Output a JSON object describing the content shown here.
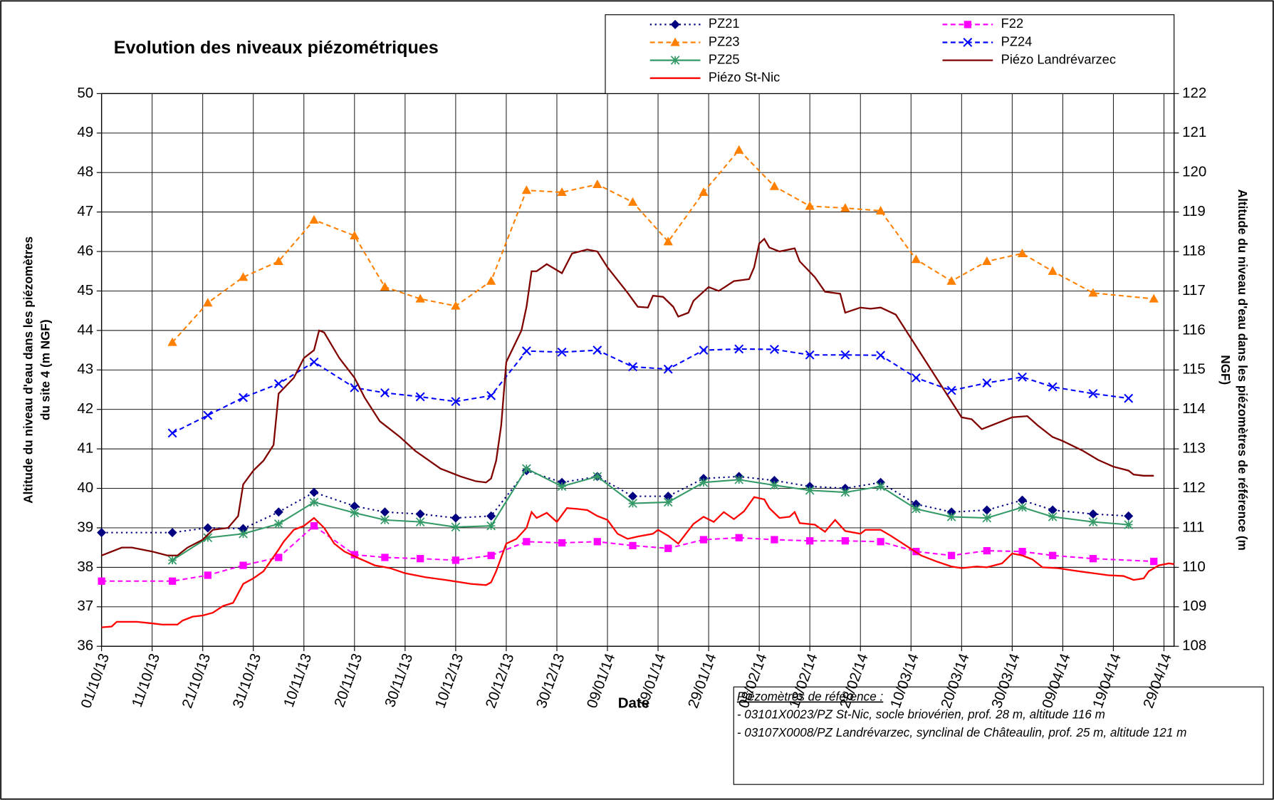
{
  "chart_data": {
    "type": "line",
    "title": "Evolution des niveaux piézométriques",
    "x_label": "Date",
    "y_label": [
      "Altitude du niveau d'eau dans les piézomètres",
      "du site 4 (m NGF)"
    ],
    "y2_label": [
      "Altitude du niveau d'eau dans les piézomètres de référence (m",
      "NGF)"
    ],
    "xlim": [
      "01/10/13",
      "01/05/14"
    ],
    "xticks": [
      "01/10/13",
      "11/10/13",
      "21/10/13",
      "31/10/13",
      "10/11/13",
      "20/11/13",
      "30/11/13",
      "10/12/13",
      "20/12/13",
      "30/12/13",
      "09/01/14",
      "19/01/14",
      "29/01/14",
      "08/02/14",
      "18/02/14",
      "28/02/14",
      "10/03/14",
      "20/03/14",
      "30/03/14",
      "09/04/14",
      "19/04/14",
      "29/04/14"
    ],
    "ylim": [
      36,
      50
    ],
    "yticks": [
      36,
      37,
      38,
      39,
      40,
      41,
      42,
      43,
      44,
      45,
      46,
      47,
      48,
      49,
      50
    ],
    "y2lim": [
      108,
      122
    ],
    "y2ticks": [
      108,
      109,
      110,
      111,
      112,
      113,
      114,
      115,
      116,
      117,
      118,
      119,
      120,
      121,
      122
    ],
    "grid": true,
    "legend": "top-right",
    "series": [
      {
        "name": "PZ21",
        "color": "#000080",
        "marker": "diamond",
        "line_style": "dotted",
        "x": [
          "01/10/13",
          "15/10/13",
          "22/10/13",
          "29/10/13",
          "05/11/13",
          "12/11/13",
          "20/11/13",
          "26/11/13",
          "03/12/13",
          "10/12/13",
          "17/12/13",
          "24/12/13",
          "31/12/13",
          "07/01/14",
          "14/01/14",
          "21/01/14",
          "28/01/14",
          "04/02/14",
          "11/02/14",
          "18/02/14",
          "25/02/14",
          "04/03/14",
          "11/03/14",
          "18/03/14",
          "25/03/14",
          "01/04/14",
          "07/04/14",
          "15/04/14",
          "22/04/14"
        ],
        "values": [
          38.88,
          38.88,
          39.0,
          38.98,
          39.4,
          39.9,
          39.55,
          39.4,
          39.35,
          39.25,
          39.3,
          40.45,
          40.15,
          40.3,
          39.8,
          39.8,
          40.25,
          40.3,
          40.2,
          40.05,
          40.0,
          40.15,
          39.6,
          39.4,
          39.45,
          39.7,
          39.45,
          39.35,
          39.3
        ]
      },
      {
        "name": "F22",
        "color": "#ff00ff",
        "marker": "square",
        "line_style": "dashed",
        "x": [
          "01/10/13",
          "15/10/13",
          "22/10/13",
          "29/10/13",
          "05/11/13",
          "12/11/13",
          "20/11/13",
          "26/11/13",
          "03/12/13",
          "10/12/13",
          "17/12/13",
          "24/12/13",
          "31/12/13",
          "07/01/14",
          "14/01/14",
          "21/01/14",
          "28/01/14",
          "04/02/14",
          "11/02/14",
          "18/02/14",
          "25/02/14",
          "04/03/14",
          "11/03/14",
          "18/03/14",
          "25/03/14",
          "01/04/14",
          "07/04/14",
          "15/04/14",
          "27/04/14"
        ],
        "values": [
          37.65,
          37.65,
          37.8,
          38.05,
          38.25,
          39.05,
          38.32,
          38.25,
          38.22,
          38.18,
          38.3,
          38.65,
          38.62,
          38.65,
          38.55,
          38.48,
          38.7,
          38.75,
          38.7,
          38.67,
          38.67,
          38.65,
          38.4,
          38.3,
          38.42,
          38.4,
          38.3,
          38.22,
          38.15
        ]
      },
      {
        "name": "PZ23",
        "color": "#ff7f00",
        "marker": "triangle",
        "line_style": "dashed",
        "x": [
          "15/10/13",
          "22/10/13",
          "29/10/13",
          "05/11/13",
          "12/11/13",
          "20/11/13",
          "26/11/13",
          "03/12/13",
          "10/12/13",
          "17/12/13",
          "24/12/13",
          "31/12/13",
          "07/01/14",
          "14/01/14",
          "21/01/14",
          "28/01/14",
          "04/02/14",
          "11/02/14",
          "18/02/14",
          "25/02/14",
          "04/03/14",
          "11/03/14",
          "18/03/14",
          "25/03/14",
          "01/04/14",
          "07/04/14",
          "15/04/14",
          "27/04/14"
        ],
        "values": [
          43.7,
          44.7,
          45.35,
          45.75,
          46.8,
          46.4,
          45.1,
          44.8,
          44.62,
          45.25,
          47.55,
          47.5,
          47.7,
          47.25,
          46.25,
          47.5,
          48.57,
          47.65,
          47.15,
          47.1,
          47.03,
          45.8,
          45.25,
          45.75,
          45.95,
          45.5,
          44.95,
          44.8
        ]
      },
      {
        "name": "PZ24",
        "color": "#0000ff",
        "marker": "x",
        "line_style": "dashed",
        "x": [
          "15/10/13",
          "22/10/13",
          "29/10/13",
          "05/11/13",
          "12/11/13",
          "20/11/13",
          "26/11/13",
          "03/12/13",
          "10/12/13",
          "17/12/13",
          "24/12/13",
          "31/12/13",
          "07/01/14",
          "14/01/14",
          "21/01/14",
          "28/01/14",
          "04/02/14",
          "11/02/14",
          "18/02/14",
          "25/02/14",
          "04/03/14",
          "11/03/14",
          "18/03/14",
          "25/03/14",
          "01/04/14",
          "07/04/14",
          "15/04/14",
          "22/04/14"
        ],
        "values": [
          41.4,
          41.85,
          42.3,
          42.65,
          43.2,
          42.55,
          42.42,
          42.32,
          42.2,
          42.35,
          43.48,
          43.45,
          43.5,
          43.08,
          43.02,
          43.5,
          43.53,
          43.52,
          43.38,
          43.38,
          43.37,
          42.8,
          42.48,
          42.67,
          42.82,
          42.57,
          42.4,
          42.28
        ]
      },
      {
        "name": "PZ25",
        "color": "#339966",
        "marker": "star",
        "line_style": "solid",
        "x": [
          "15/10/13",
          "22/10/13",
          "29/10/13",
          "05/11/13",
          "12/11/13",
          "20/11/13",
          "26/11/13",
          "03/12/13",
          "10/12/13",
          "17/12/13",
          "24/12/13",
          "31/12/13",
          "07/01/14",
          "14/01/14",
          "21/01/14",
          "28/01/14",
          "04/02/14",
          "11/02/14",
          "18/02/14",
          "25/02/14",
          "04/03/14",
          "11/03/14",
          "18/03/14",
          "25/03/14",
          "01/04/14",
          "07/04/14",
          "15/04/14",
          "22/04/14"
        ],
        "values": [
          38.18,
          38.75,
          38.85,
          39.1,
          39.65,
          39.38,
          39.2,
          39.15,
          39.02,
          39.05,
          40.5,
          40.05,
          40.3,
          39.62,
          39.65,
          40.15,
          40.22,
          40.08,
          39.95,
          39.9,
          40.05,
          39.48,
          39.28,
          39.25,
          39.52,
          39.28,
          39.15,
          39.08
        ]
      },
      {
        "name": "Piézo Landrévarzec",
        "color": "#800000",
        "marker": "none",
        "line_style": "solid",
        "axis": "y2",
        "x": [
          "01/10/13",
          "05/10/13",
          "07/10/13",
          "11/10/13",
          "14/10/13",
          "16/10/13",
          "18/10/13",
          "21/10/13",
          "23/10/13",
          "26/10/13",
          "28/10/13",
          "29/10/13",
          "31/10/13",
          "02/11/13",
          "04/11/13",
          "05/11/13",
          "08/11/13",
          "10/11/13",
          "12/11/13",
          "13/11/13",
          "14/11/13",
          "17/11/13",
          "20/11/13",
          "22/11/13",
          "25/11/13",
          "29/11/13",
          "02/12/13",
          "07/12/13",
          "11/12/13",
          "14/12/13",
          "16/12/13",
          "17/12/13",
          "18/12/13",
          "19/12/13",
          "20/12/13",
          "23/12/13",
          "24/12/13",
          "25/12/13",
          "26/12/13",
          "28/12/13",
          "31/12/13",
          "02/01/14",
          "05/01/14",
          "07/01/14",
          "09/01/14",
          "13/01/14",
          "15/01/14",
          "17/01/14",
          "18/01/14",
          "20/01/14",
          "22/01/14",
          "23/01/14",
          "25/01/14",
          "26/01/14",
          "29/01/14",
          "31/01/14",
          "03/02/14",
          "06/02/14",
          "07/02/14",
          "08/02/14",
          "09/02/14",
          "10/02/14",
          "12/02/14",
          "15/02/14",
          "16/02/14",
          "19/02/14",
          "21/02/14",
          "24/02/14",
          "25/02/14",
          "28/02/14",
          "02/03/14",
          "04/03/14",
          "07/03/14",
          "09/03/14",
          "12/03/14",
          "15/03/14",
          "18/03/14",
          "20/03/14",
          "22/03/14",
          "24/03/14",
          "27/03/14",
          "30/03/14",
          "02/04/14",
          "04/04/14",
          "07/04/14",
          "09/04/14",
          "13/04/14",
          "16/04/14",
          "19/04/14",
          "22/04/14",
          "23/04/14",
          "25/04/14",
          "27/04/14"
        ],
        "values": [
          110.3,
          110.5,
          110.5,
          110.4,
          110.3,
          110.3,
          110.5,
          110.7,
          110.95,
          111.0,
          111.3,
          112.1,
          112.45,
          112.7,
          113.1,
          114.4,
          114.8,
          115.3,
          115.5,
          116.0,
          115.95,
          115.3,
          114.8,
          114.3,
          113.7,
          113.3,
          112.95,
          112.5,
          112.3,
          112.18,
          112.15,
          112.25,
          112.7,
          113.6,
          115.2,
          116.0,
          116.6,
          117.5,
          117.5,
          117.68,
          117.45,
          117.95,
          118.05,
          118.0,
          117.6,
          116.95,
          116.6,
          116.58,
          116.88,
          116.85,
          116.6,
          116.35,
          116.45,
          116.75,
          117.1,
          117.0,
          117.25,
          117.3,
          117.6,
          118.2,
          118.32,
          118.1,
          118.0,
          118.08,
          117.75,
          117.35,
          116.98,
          116.93,
          116.45,
          116.58,
          116.55,
          116.58,
          116.4,
          116.0,
          115.4,
          114.8,
          114.2,
          113.8,
          113.75,
          113.5,
          113.65,
          113.8,
          113.83,
          113.6,
          113.3,
          113.2,
          112.95,
          112.72,
          112.55,
          112.45,
          112.35,
          112.32,
          112.32
        ]
      },
      {
        "name": "Piézo St-Nic",
        "color": "#ff0000",
        "marker": "none",
        "line_style": "solid",
        "axis": "y2",
        "x": [
          "01/10/13",
          "03/10/13",
          "04/10/13",
          "08/10/13",
          "11/10/13",
          "13/10/13",
          "16/10/13",
          "17/10/13",
          "19/10/13",
          "21/10/13",
          "23/10/13",
          "25/10/13",
          "27/10/13",
          "29/10/13",
          "31/10/13",
          "02/11/13",
          "05/11/13",
          "06/11/13",
          "08/11/13",
          "10/11/13",
          "12/11/13",
          "14/11/13",
          "16/11/13",
          "18/11/13",
          "21/11/13",
          "24/11/13",
          "27/11/13",
          "30/11/13",
          "04/12/13",
          "08/12/13",
          "11/12/13",
          "13/12/13",
          "16/12/13",
          "17/12/13",
          "18/12/13",
          "20/12/13",
          "22/12/13",
          "24/12/13",
          "25/12/13",
          "26/12/13",
          "28/12/13",
          "30/12/13",
          "01/01/14",
          "03/01/14",
          "05/01/14",
          "07/01/14",
          "09/01/14",
          "11/01/14",
          "13/01/14",
          "15/01/14",
          "18/01/14",
          "19/01/14",
          "21/01/14",
          "23/01/14",
          "26/01/14",
          "28/01/14",
          "30/01/14",
          "01/02/14",
          "03/02/14",
          "05/02/14",
          "07/02/14",
          "09/02/14",
          "10/02/14",
          "12/02/14",
          "14/02/14",
          "15/02/14",
          "16/02/14",
          "19/02/14",
          "21/02/14",
          "23/02/14",
          "25/02/14",
          "28/02/14",
          "01/03/14",
          "04/03/14",
          "06/03/14",
          "09/03/14",
          "12/03/14",
          "15/03/14",
          "18/03/14",
          "20/03/14",
          "23/03/14",
          "25/03/14",
          "28/03/14",
          "30/03/14",
          "01/04/14",
          "03/04/14",
          "05/04/14",
          "08/04/14",
          "11/04/14",
          "15/04/14",
          "18/04/14",
          "21/04/14",
          "23/04/14",
          "25/04/14",
          "26/04/14",
          "28/04/14",
          "30/04/14",
          "01/05/14"
        ],
        "values": [
          108.48,
          108.5,
          108.62,
          108.62,
          108.58,
          108.55,
          108.55,
          108.65,
          108.75,
          108.78,
          108.85,
          109.02,
          109.1,
          109.58,
          109.72,
          109.9,
          110.45,
          110.65,
          110.95,
          111.05,
          111.25,
          111.0,
          110.6,
          110.4,
          110.22,
          110.05,
          109.98,
          109.85,
          109.75,
          109.68,
          109.62,
          109.58,
          109.55,
          109.62,
          109.9,
          110.6,
          110.72,
          111.0,
          111.4,
          111.25,
          111.38,
          111.15,
          111.5,
          111.48,
          111.45,
          111.3,
          111.2,
          110.85,
          110.72,
          110.78,
          110.85,
          110.95,
          110.8,
          110.6,
          111.1,
          111.28,
          111.15,
          111.4,
          111.22,
          111.42,
          111.78,
          111.72,
          111.5,
          111.25,
          111.28,
          111.4,
          111.12,
          111.08,
          110.9,
          111.2,
          110.92,
          110.85,
          110.95,
          110.95,
          110.8,
          110.55,
          110.3,
          110.15,
          110.02,
          109.98,
          110.02,
          110.0,
          110.1,
          110.35,
          110.3,
          110.2,
          110.0,
          109.98,
          109.92,
          109.85,
          109.8,
          109.78,
          109.68,
          109.72,
          109.9,
          110.05,
          110.1,
          110.08
        ]
      }
    ],
    "annotation": {
      "title": "Piézomètres de référence  :",
      "lines": [
        "- 03101X0023/PZ St-Nic, socle briovérien, prof. 28 m, altitude 116 m",
        "- 03107X0008/PZ Landrévarzec, synclinal de Châteaulin, prof. 25 m, altitude 121 m"
      ]
    }
  }
}
